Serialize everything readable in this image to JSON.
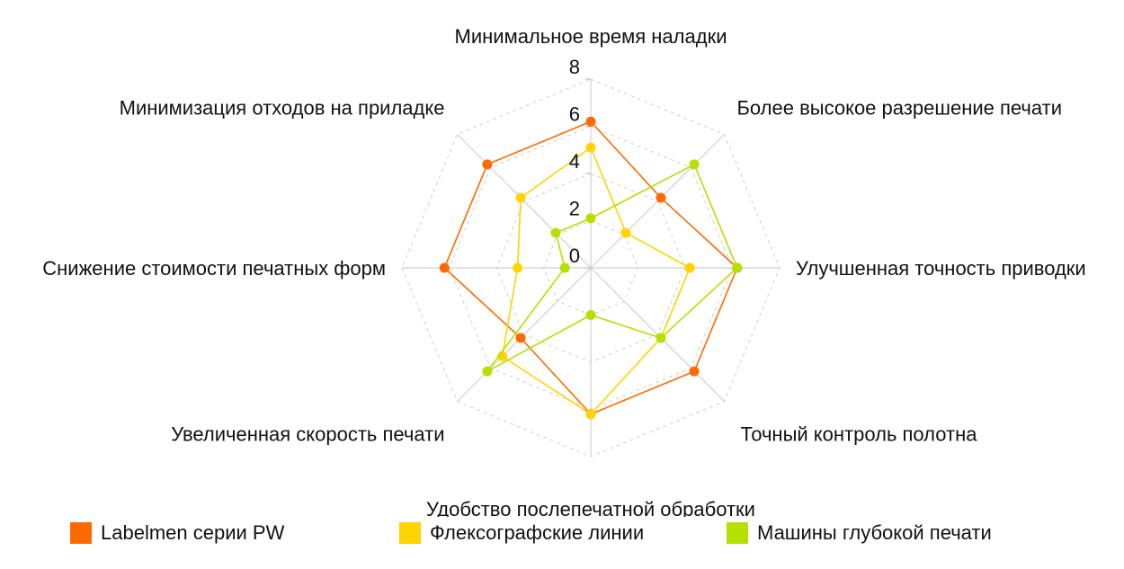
{
  "chart_data": {
    "type": "radar",
    "axes": [
      "Минимальное время наладки",
      "Более высокое разрешение печати",
      "Улучшенная точность приводки",
      "Точный контроль полотна",
      "Удобство послепечатной обработки",
      "Увеличенная скорость печати",
      "Снижение стоимости печатных форм",
      "Минимизация отходов на приладке"
    ],
    "rlim": [
      0,
      8
    ],
    "ticks": [
      "0",
      "2",
      "4",
      "6",
      "8"
    ],
    "grid": true,
    "legend_position": "bottom",
    "series": [
      {
        "name": "Labelmen серии PW",
        "color": "#ff6a00",
        "values": [
          6.2,
          4.2,
          6.2,
          6.2,
          6.2,
          4.2,
          6.2,
          6.2
        ]
      },
      {
        "name": "Флексографские линии",
        "color": "#ffd400",
        "values": [
          5.1,
          2.1,
          4.2,
          4.2,
          6.2,
          5.3,
          3.1,
          4.2
        ]
      },
      {
        "name": "Машины глубокой печати",
        "color": "#b5e000",
        "values": [
          2.1,
          6.2,
          6.2,
          4.2,
          2.0,
          6.2,
          1.1,
          2.1
        ]
      }
    ]
  }
}
